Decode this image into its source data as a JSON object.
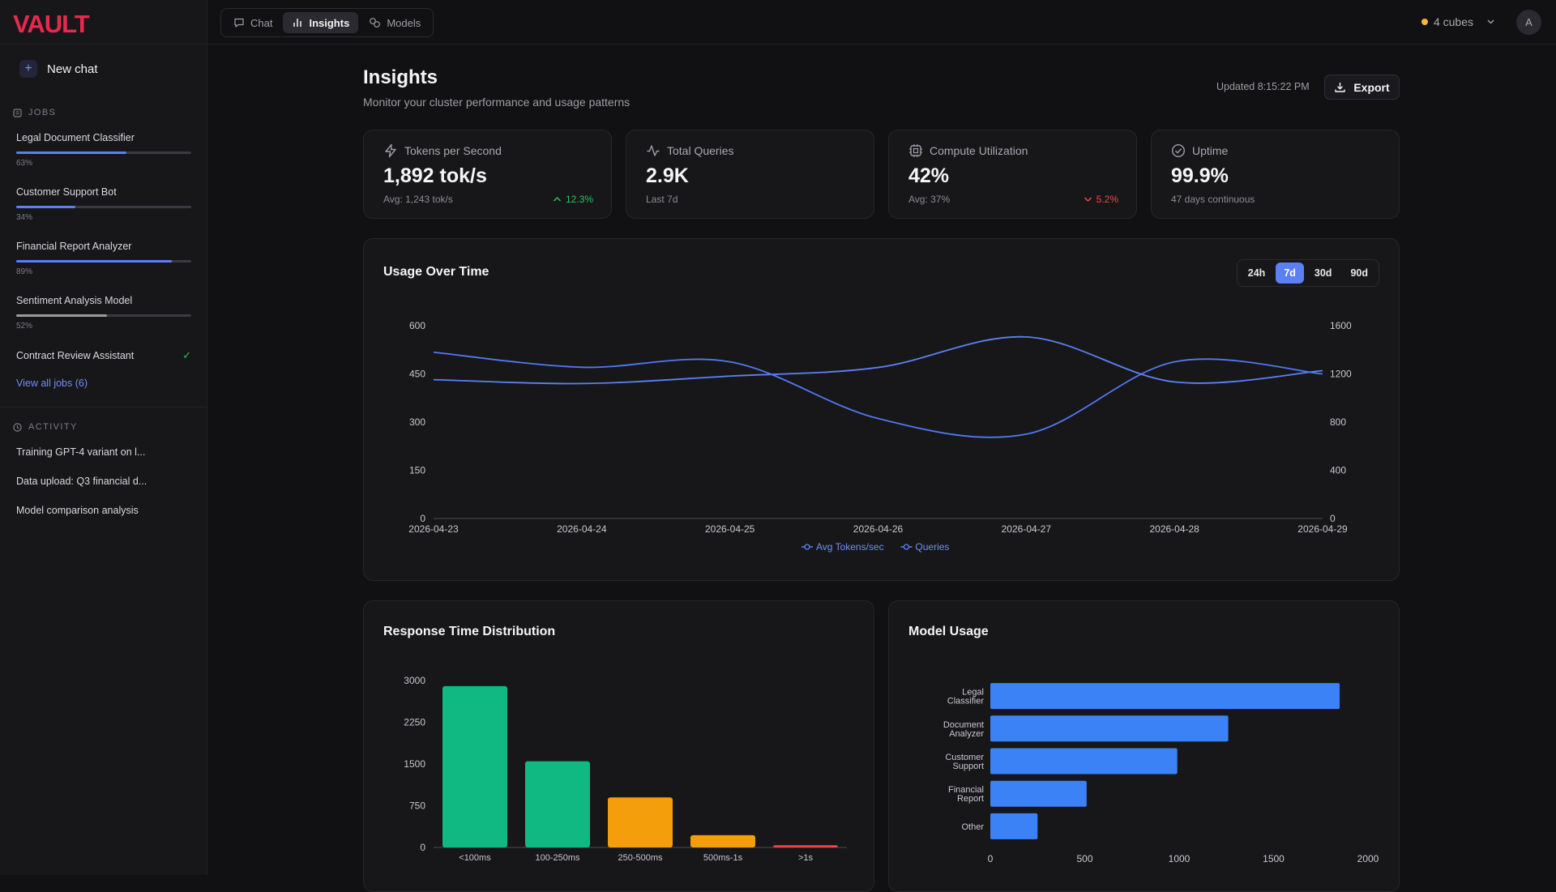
{
  "app": {
    "logo": "VAULT"
  },
  "sidebar": {
    "new_chat": "New chat",
    "jobs_label": "JOBS",
    "jobs": [
      {
        "name": "Legal Document Classifier",
        "progress": 63,
        "pct_label": "63%",
        "status": "running"
      },
      {
        "name": "Customer Support Bot",
        "progress": 34,
        "pct_label": "34%",
        "status": "running"
      },
      {
        "name": "Financial Report Analyzer",
        "progress": 89,
        "pct_label": "89%",
        "status": "running"
      },
      {
        "name": "Sentiment Analysis Model",
        "progress": 52,
        "pct_label": "52%",
        "status": "paused"
      },
      {
        "name": "Contract Review Assistant",
        "status": "complete"
      }
    ],
    "view_all": "View all jobs (6)",
    "activity_label": "ACTIVITY",
    "activity": [
      "Training GPT-4 variant on l...",
      "Data upload: Q3 financial d...",
      "Model comparison analysis"
    ]
  },
  "topbar": {
    "tabs": [
      {
        "label": "Chat",
        "icon": "chat-bubble-icon",
        "active": false
      },
      {
        "label": "Insights",
        "icon": "bar-chart-icon",
        "active": true
      },
      {
        "label": "Models",
        "icon": "models-icon",
        "active": false
      }
    ],
    "cubes": "4 cubes",
    "avatar_initial": "A"
  },
  "header": {
    "title": "Insights",
    "subtitle": "Monitor your cluster performance and usage patterns",
    "updated": "Updated 8:15:22 PM",
    "export": "Export"
  },
  "stats": [
    {
      "label": "Tokens per Second",
      "icon": "lightning-icon",
      "value": "1,892 tok/s",
      "sub": "Avg: 1,243 tok/s",
      "delta": "12.3%",
      "direction": "up"
    },
    {
      "label": "Total Queries",
      "icon": "activity-icon",
      "value": "2.9K",
      "sub": "Last 7d",
      "delta": "",
      "direction": ""
    },
    {
      "label": "Compute Utilization",
      "icon": "cpu-icon",
      "value": "42%",
      "sub": "Avg: 37%",
      "delta": "5.2%",
      "direction": "down"
    },
    {
      "label": "Uptime",
      "icon": "check-circle-icon",
      "value": "99.9%",
      "sub": "47 days continuous",
      "delta": "",
      "direction": ""
    }
  ],
  "usage": {
    "title": "Usage Over Time",
    "ranges": [
      "24h",
      "7d",
      "30d",
      "90d"
    ],
    "active_range": "7d"
  },
  "response": {
    "title": "Response Time Distribution"
  },
  "model_usage": {
    "title": "Model Usage"
  },
  "colors": {
    "accent": "#5b7ff5",
    "green": "#10b981",
    "amber": "#f59e0b",
    "red": "#ef4444",
    "bar_blue": "#3b82f6"
  },
  "chart_data": [
    {
      "type": "line",
      "title": "Usage Over Time",
      "x": [
        "2026-04-23",
        "2026-04-24",
        "2026-04-25",
        "2026-04-26",
        "2026-04-27",
        "2026-04-28",
        "2026-04-29"
      ],
      "ylim_left": [
        0,
        600
      ],
      "yticks_left": [
        "0",
        "150",
        "300",
        "450",
        "600"
      ],
      "ylim_right": [
        0,
        1600
      ],
      "yticks_right": [
        "0",
        "400",
        "800",
        "1200",
        "1600"
      ],
      "series": [
        {
          "name": "Avg Tokens/sec",
          "axis": "left",
          "values": [
            432,
            420,
            443,
            470,
            565,
            425,
            460
          ]
        },
        {
          "name": "Queries",
          "axis": "right",
          "values": [
            1380,
            1255,
            1300,
            830,
            700,
            1300,
            1200
          ]
        }
      ],
      "legend": "bottom",
      "grid": false
    },
    {
      "type": "bar",
      "title": "Response Time Distribution",
      "categories": [
        "<100ms",
        "100-250ms",
        "250-500ms",
        "500ms-1s",
        ">1s"
      ],
      "values": [
        2900,
        1550,
        900,
        220,
        40
      ],
      "colors": [
        "#10b981",
        "#10b981",
        "#f59e0b",
        "#f59e0b",
        "#ef4444"
      ],
      "ylim": [
        0,
        3000
      ],
      "yticks": [
        "0",
        "750",
        "1500",
        "2250",
        "3000"
      ]
    },
    {
      "type": "bar",
      "orientation": "horizontal",
      "title": "Model Usage",
      "categories": [
        [
          "Legal",
          "Classifier"
        ],
        [
          "Document",
          "Analyzer"
        ],
        [
          "Customer",
          "Support"
        ],
        [
          "Financial",
          "Report"
        ],
        [
          "Other"
        ]
      ],
      "values": [
        1850,
        1260,
        990,
        510,
        250
      ],
      "xlim": [
        0,
        2000
      ],
      "xticks": [
        "0",
        "500",
        "1000",
        "1500",
        "2000"
      ]
    }
  ]
}
